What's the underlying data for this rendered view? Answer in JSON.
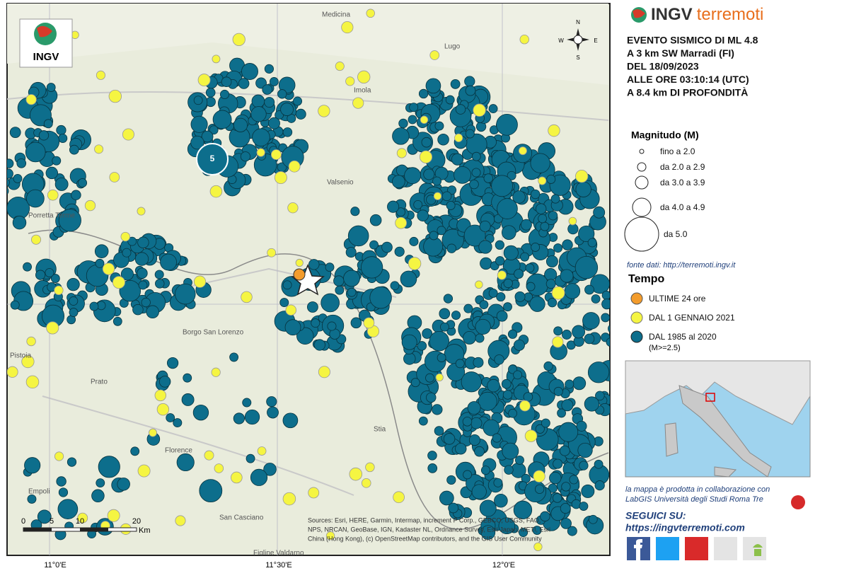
{
  "header": {
    "logo": "INGV",
    "brand_1": "INGV",
    "brand_2": "terremoti"
  },
  "event": {
    "lines": [
      "EVENTO SISMICO DI ML 4.8",
      "A 3 km SW Marradi (FI)",
      "DEL 18/09/2023",
      "ALLE ORE 03:10:14 (UTC)",
      "A 8.4 km DI PROFONDITÀ"
    ]
  },
  "magnitude_legend": {
    "title": "Magnitudo (M)",
    "items": [
      "fino a 2.0",
      "da 2.0 a 2.9",
      "da 3.0 a 3.9",
      "da 4.0 a 4.9",
      "da 5.0"
    ]
  },
  "source": "fonte dati: http://terremoti.ingv.it",
  "time_legend": {
    "title": "Tempo",
    "items": [
      "ULTIME 24 ore",
      "DAL 1 GENNAIO 2021",
      "DAL 1985 al 2020",
      "(M>=2.5)"
    ]
  },
  "collaboration": [
    "la mappa è prodotta in collaborazione con",
    "LabGIS Università degli Studi Roma Tre"
  ],
  "follow": {
    "title": "SEGUICI SU:",
    "url": "https://ingvterremoti.com"
  },
  "map": {
    "places": [
      "Medicina",
      "Imola",
      "Lugo",
      "Valsenio",
      "Porretta Terme",
      "Pistoia",
      "Prato",
      "Florence",
      "Empoli",
      "Borgo San Lorenzo",
      "Stia",
      "Figline Valdarno",
      "San Casciano"
    ],
    "longitude_labels": [
      "11°0'E",
      "11°30'E",
      "12°0'E"
    ],
    "scale": [
      "0",
      "5",
      "10",
      "20",
      "Km"
    ],
    "compass": [
      "N",
      "S",
      "W",
      "E"
    ],
    "big_quake_label": "5",
    "attribution": [
      "Sources: Esri, HERE, Garmin, Intermap, increment P Corp., GEBCO, USGS, FAO,",
      "NPS, NRCAN, GeoBase, IGN, Kadaster NL, Ordnance Survey, Esri Japan, METI, Esri",
      "China (Hong Kong), (c) OpenStreetMap contributors, and the GIS User Community"
    ]
  }
}
